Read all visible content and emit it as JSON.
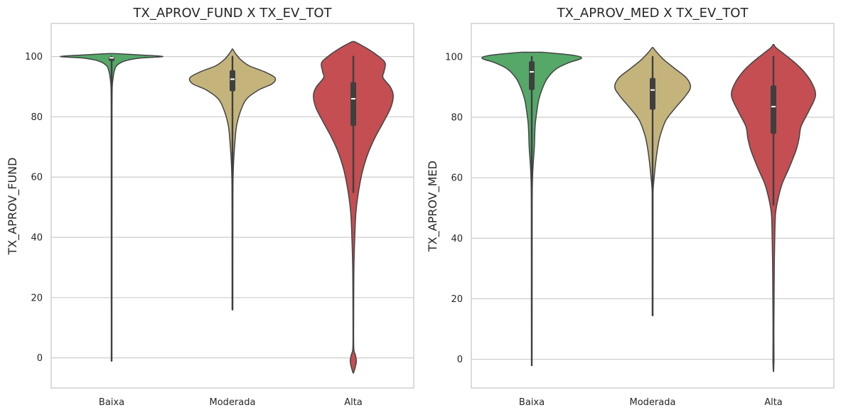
{
  "chart_data": [
    {
      "type": "violin",
      "title": "TX_APROV_FUND X TX_EV_TOT",
      "xlabel": "",
      "ylabel": "TX_APROV_FUND",
      "categories": [
        "Baixa",
        "Moderada",
        "Alta"
      ],
      "ylim": [
        -10,
        111
      ],
      "yticks": [
        0,
        20,
        40,
        60,
        80,
        100
      ],
      "grid": true,
      "series": [
        {
          "category": "Baixa",
          "color": "#55a868",
          "whisker": [
            -1,
            100
          ],
          "q1": 98.5,
          "median": 99.6,
          "q3": 100,
          "density": [
            [
              -1,
              0.002
            ],
            [
              20,
              0.004
            ],
            [
              60,
              0.005
            ],
            [
              82,
              0.006
            ],
            [
              90,
              0.012
            ],
            [
              93,
              0.03
            ],
            [
              95,
              0.05
            ],
            [
              97,
              0.1
            ],
            [
              98.5,
              0.25
            ],
            [
              99.5,
              0.55
            ],
            [
              100,
              1.0
            ],
            [
              100.5,
              0.6
            ],
            [
              101,
              0.05
            ]
          ]
        },
        {
          "category": "Moderada",
          "color": "#c4b47c",
          "whisker": [
            16,
            100
          ],
          "q1": 88.5,
          "median": 92.5,
          "q3": 95.5,
          "density": [
            [
              16,
              0.005
            ],
            [
              50,
              0.007
            ],
            [
              60,
              0.012
            ],
            [
              66,
              0.025
            ],
            [
              72,
              0.05
            ],
            [
              77,
              0.08
            ],
            [
              82,
              0.16
            ],
            [
              86,
              0.28
            ],
            [
              89,
              0.52
            ],
            [
              91,
              0.78
            ],
            [
              93,
              0.83
            ],
            [
              95,
              0.62
            ],
            [
              97,
              0.32
            ],
            [
              99,
              0.16
            ],
            [
              101,
              0.06
            ],
            [
              102.5,
              0.005
            ]
          ]
        },
        {
          "category": "Alta",
          "color": "#c44e52",
          "whisker": [
            55,
            100
          ],
          "q1": 77,
          "median": 86,
          "q3": 91.5,
          "density": [
            [
              -5,
              0.005
            ],
            [
              -3,
              0.04
            ],
            [
              -1,
              0.06
            ],
            [
              1,
              0.04
            ],
            [
              3,
              0.01
            ],
            [
              10,
              0.006
            ],
            [
              20,
              0.008
            ],
            [
              30,
              0.012
            ],
            [
              40,
              0.028
            ],
            [
              48,
              0.05
            ],
            [
              55,
              0.1
            ],
            [
              62,
              0.18
            ],
            [
              68,
              0.29
            ],
            [
              73,
              0.42
            ],
            [
              78,
              0.58
            ],
            [
              83,
              0.73
            ],
            [
              87,
              0.78
            ],
            [
              90,
              0.72
            ],
            [
              93,
              0.58
            ],
            [
              95,
              0.6
            ],
            [
              98,
              0.62
            ],
            [
              100.5,
              0.46
            ],
            [
              103,
              0.24
            ],
            [
              105,
              0.02
            ]
          ]
        }
      ]
    },
    {
      "type": "violin",
      "title": "TX_APROV_MED X TX_EV_TOT",
      "xlabel": "",
      "ylabel": "TX_APROV_MED",
      "categories": [
        "Baixa",
        "Moderada",
        "Alta"
      ],
      "ylim": [
        -9.5,
        111
      ],
      "yticks": [
        0,
        20,
        40,
        60,
        80,
        100
      ],
      "grid": true,
      "series": [
        {
          "category": "Baixa",
          "color": "#55a868",
          "whisker": [
            -2,
            100
          ],
          "q1": 89,
          "median": 95,
          "q3": 98.5,
          "density": [
            [
              -2,
              0.003
            ],
            [
              20,
              0.005
            ],
            [
              50,
              0.007
            ],
            [
              60,
              0.015
            ],
            [
              65,
              0.03
            ],
            [
              70,
              0.05
            ],
            [
              75,
              0.06
            ],
            [
              78,
              0.07
            ],
            [
              82,
              0.1
            ],
            [
              86,
              0.14
            ],
            [
              90,
              0.22
            ],
            [
              93,
              0.31
            ],
            [
              96,
              0.48
            ],
            [
              98,
              0.72
            ],
            [
              99.5,
              0.97
            ],
            [
              100.5,
              0.8
            ],
            [
              101.5,
              0.2
            ]
          ]
        },
        {
          "category": "Moderada",
          "color": "#c4b47c",
          "whisker": [
            14.5,
            100
          ],
          "q1": 82.5,
          "median": 89,
          "q3": 93,
          "density": [
            [
              14.5,
              0.005
            ],
            [
              50,
              0.007
            ],
            [
              56,
              0.01
            ],
            [
              60,
              0.03
            ],
            [
              65,
              0.06
            ],
            [
              70,
              0.1
            ],
            [
              74,
              0.15
            ],
            [
              79,
              0.26
            ],
            [
              83,
              0.44
            ],
            [
              87,
              0.64
            ],
            [
              90,
              0.74
            ],
            [
              93,
              0.66
            ],
            [
              96,
              0.44
            ],
            [
              99,
              0.22
            ],
            [
              101.5,
              0.08
            ],
            [
              103,
              0.01
            ]
          ]
        },
        {
          "category": "Alta",
          "color": "#c44e52",
          "whisker": [
            51,
            100
          ],
          "q1": 74.5,
          "median": 83.5,
          "q3": 90.5,
          "density": [
            [
              -4,
              0.003
            ],
            [
              0,
              0.01
            ],
            [
              10,
              0.008
            ],
            [
              20,
              0.012
            ],
            [
              30,
              0.016
            ],
            [
              40,
              0.025
            ],
            [
              48,
              0.04
            ],
            [
              53,
              0.09
            ],
            [
              58,
              0.17
            ],
            [
              63,
              0.3
            ],
            [
              69,
              0.44
            ],
            [
              73,
              0.5
            ],
            [
              77,
              0.54
            ],
            [
              82,
              0.69
            ],
            [
              87,
              0.82
            ],
            [
              91,
              0.76
            ],
            [
              95,
              0.6
            ],
            [
              98,
              0.42
            ],
            [
              101,
              0.2
            ],
            [
              103,
              0.05
            ],
            [
              104,
              0.01
            ]
          ]
        }
      ]
    }
  ]
}
